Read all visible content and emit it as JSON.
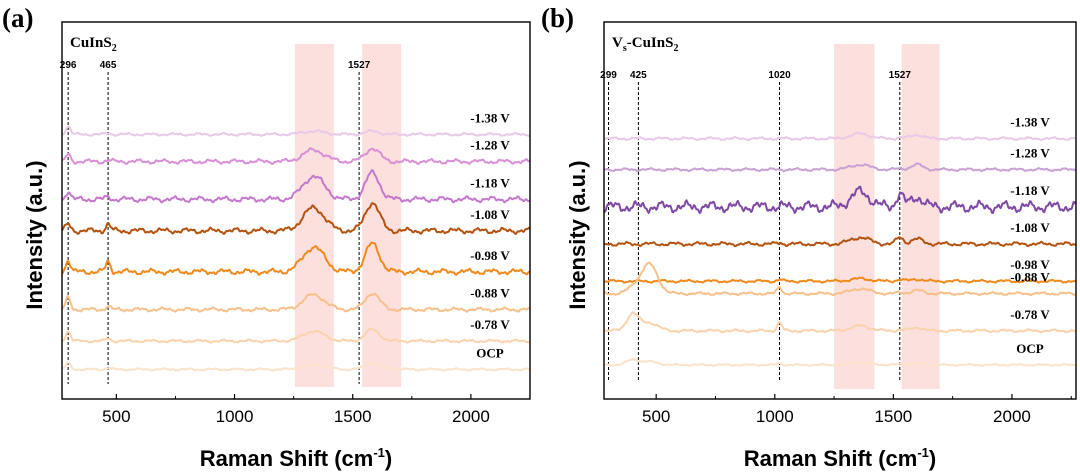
{
  "chart_data": [
    {
      "type": "line",
      "panel": "(a)",
      "sample": {
        "base": "CuInS",
        "sub": "2"
      },
      "xlabel": {
        "main": "Raman Shift (cm",
        "sup": "-1",
        "close": ")"
      },
      "ylabel": "Intensity (a.u.)",
      "xlim": [
        270,
        2250
      ],
      "xticks": [
        500,
        1000,
        1500,
        2000
      ],
      "peak_markers": [
        {
          "label": "296",
          "x": 296
        },
        {
          "label": "465",
          "x": 465
        },
        {
          "label": "1527",
          "x": 1527
        }
      ],
      "highlight_bands": [
        [
          1255,
          1420
        ],
        [
          1540,
          1705
        ]
      ],
      "peak_shapes": [
        {
          "c": 296,
          "w": 10
        },
        {
          "c": 465,
          "w": 10
        },
        {
          "c": 1335,
          "w": 45
        },
        {
          "c": 1583,
          "w": 30
        }
      ],
      "series": [
        {
          "name": "-1.38 V",
          "baseline": 0.14,
          "color": "#e8c9e8",
          "amps": [
            2.5,
            0.4,
            1.0,
            1.0
          ],
          "tail": 0.5
        },
        {
          "name": "-1.28 V",
          "baseline": 1.0,
          "color": "#d98fd6",
          "amps": [
            2.0,
            0.4,
            3.5,
            4.0
          ],
          "tail": 0.8
        },
        {
          "name": "-1.18 V",
          "baseline": 2.2,
          "color": "#c479cc",
          "amps": [
            2.5,
            0.8,
            7.0,
            8.0
          ],
          "tail": 1.0
        },
        {
          "name": "-1.08 V",
          "baseline": 3.2,
          "color": "#b4530f",
          "amps": [
            2.0,
            2.0,
            7.0,
            8.5
          ],
          "tail": 1.0
        },
        {
          "name": "-0.98 V",
          "baseline": 4.5,
          "color": "#f08a1c",
          "amps": [
            3.5,
            3.0,
            7.5,
            8.5
          ],
          "tail": 1.0
        },
        {
          "name": "-0.88 V",
          "baseline": 5.7,
          "color": "#f8c08a",
          "amps": [
            3.5,
            1.0,
            4.5,
            5.0
          ],
          "tail": 0.7
        },
        {
          "name": "-0.78 V",
          "baseline": 6.7,
          "color": "#fad3ac",
          "amps": [
            3.0,
            0.8,
            3.0,
            3.5
          ],
          "tail": 0.5
        },
        {
          "name": "OCP",
          "baseline": 7.6,
          "color": "#fbe2ca",
          "amps": [
            2.0,
            0.5,
            1.5,
            2.0
          ],
          "tail": 0.4
        }
      ]
    },
    {
      "type": "line",
      "panel": "(b)",
      "sample": {
        "base": "V",
        "sub1": "s",
        "mid": "-CuInS",
        "sub": "2"
      },
      "xlabel": {
        "main": "Raman Shift (cm",
        "sup": "-1",
        "close": ")"
      },
      "ylabel": "Intensity (a.u.)",
      "xlim": [
        280,
        2270
      ],
      "xticks": [
        500,
        1000,
        1500,
        2000
      ],
      "peak_markers": [
        {
          "label": "299",
          "x": 299
        },
        {
          "label": "425",
          "x": 425
        },
        {
          "label": "1020",
          "x": 1020
        },
        {
          "label": "1527",
          "x": 1527
        }
      ],
      "highlight_bands": [
        [
          1250,
          1420
        ],
        [
          1535,
          1695
        ]
      ],
      "peak_shapes": [
        {
          "c": 400,
          "w": 25
        },
        {
          "c": 470,
          "w": 35
        },
        {
          "c": 1020,
          "w": 10
        },
        {
          "c": 1360,
          "w": 40
        },
        {
          "c": 1527,
          "w": 15
        },
        {
          "c": 1600,
          "w": 25
        }
      ],
      "series": [
        {
          "name": "-1.38 V",
          "baseline": 0.6,
          "color": "#e8c9e8",
          "amps": [
            0,
            0,
            0,
            1.5,
            0.3,
            1.2
          ],
          "tail": 0.5
        },
        {
          "name": "-1.28 V",
          "baseline": 1.6,
          "color": "#c9a0d4",
          "amps": [
            0,
            0,
            0,
            1.5,
            0.3,
            1.5
          ],
          "tail": 0.5
        },
        {
          "name": "-1.18 V",
          "baseline": 2.8,
          "color": "#7e4aa5",
          "amps": [
            0,
            0,
            0,
            4.5,
            4.0,
            3.0
          ],
          "tail": 2.0
        },
        {
          "name": "-1.08 V",
          "baseline": 4.0,
          "color": "#b4530f",
          "amps": [
            0,
            0,
            0.4,
            2.0,
            2.0,
            1.5
          ],
          "tail": 0.7
        },
        {
          "name": "-0.98 V",
          "baseline": 5.2,
          "color": "#f08a1c",
          "amps": [
            0,
            0,
            0.5,
            0.8,
            0.5,
            0.6
          ],
          "tail": 0.5
        },
        {
          "name": "-0.88 V",
          "baseline": 5.6,
          "color": "#f8c08a",
          "amps": [
            1.5,
            9.0,
            2.0,
            1.5,
            0.3,
            1.0
          ],
          "tail": 0.5
        },
        {
          "name": "-0.78 V",
          "baseline": 6.8,
          "color": "#fad3ac",
          "amps": [
            5.0,
            2.5,
            2.5,
            1.5,
            0.3,
            1.0
          ],
          "tail": 0.5
        },
        {
          "name": "OCP",
          "baseline": 7.9,
          "color": "#fbe2ca",
          "amps": [
            1.5,
            1.0,
            0.5,
            0.8,
            0.3,
            0.6
          ],
          "tail": 0.3
        }
      ]
    }
  ]
}
